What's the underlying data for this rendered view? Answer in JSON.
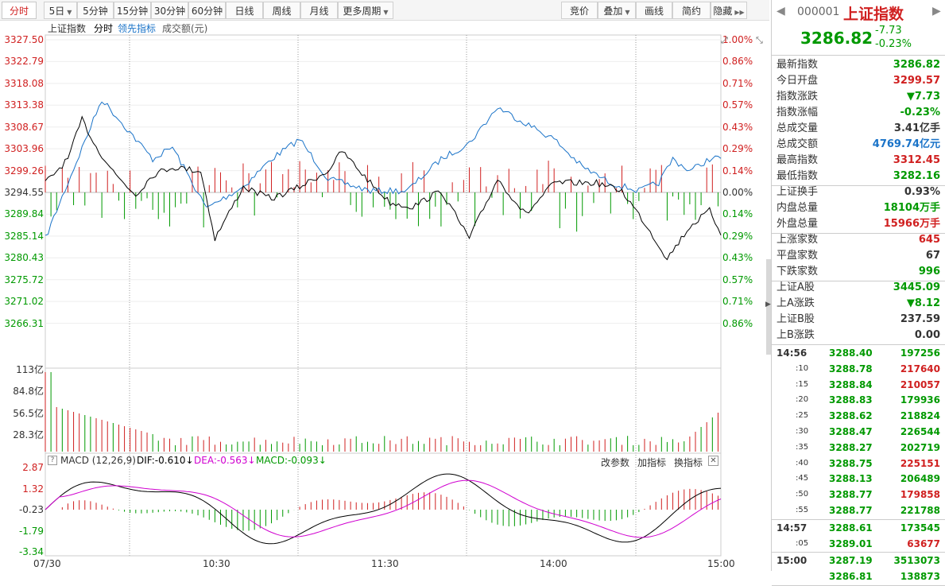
{
  "toolbar": {
    "periods": [
      {
        "label": "分时",
        "active": true
      },
      {
        "label": "5日",
        "dropdown": true
      },
      {
        "label": "5分钟"
      },
      {
        "label": "15分钟"
      },
      {
        "label": "30分钟"
      },
      {
        "label": "60分钟"
      },
      {
        "label": "日线"
      },
      {
        "label": "周线"
      },
      {
        "label": "月线"
      },
      {
        "label": "更多周期",
        "dropdown": true
      }
    ],
    "tools": [
      {
        "label": "竞价"
      },
      {
        "label": "叠加",
        "dropdown": true
      },
      {
        "label": "画线"
      },
      {
        "label": "简约"
      },
      {
        "label": "隐藏"
      }
    ]
  },
  "legend": {
    "index_name": "上证指数",
    "mode": "分时",
    "lead": "领先指标",
    "volume_label": "成交额(元)"
  },
  "price_axis": {
    "left": [
      "3327.50",
      "3322.79",
      "3318.08",
      "3313.38",
      "3308.67",
      "3303.96",
      "3299.26",
      "3294.55",
      "3289.84",
      "3285.14",
      "3280.43",
      "3275.72",
      "3271.02",
      "3266.31"
    ],
    "right": [
      "1.00%",
      "0.86%",
      "0.71%",
      "0.57%",
      "0.43%",
      "0.29%",
      "0.14%",
      "0.00%",
      "0.14%",
      "0.29%",
      "0.43%",
      "0.57%",
      "0.71%",
      "0.86%"
    ]
  },
  "volume_axis": [
    "113亿",
    "84.8亿",
    "56.5亿",
    "28.3亿"
  ],
  "macd": {
    "title": "MACD (12,26,9)",
    "dif": "DIF:-0.610",
    "dea": "DEA:-0.563",
    "macd": "MACD:-0.093",
    "axis": [
      "2.87",
      "1.32",
      "-0.23",
      "-1.79",
      "-3.34"
    ],
    "buttons": [
      "改参数",
      "加指标",
      "换指标"
    ]
  },
  "time_axis": [
    "07/30",
    "10:30",
    "11:30",
    "14:00",
    "15:00"
  ],
  "colors": {
    "up": "#d02020",
    "down": "#009900",
    "price_line": "#1a73c8",
    "avg_line": "#000000",
    "dea": "#d000d0"
  },
  "quote": {
    "code": "000001",
    "name": "上证指数",
    "price": "3286.82",
    "change": "-7.73",
    "change_pct": "-0.23%"
  },
  "stats1": [
    {
      "k": "最新指数",
      "v": "3286.82",
      "c": "down"
    },
    {
      "k": "今日开盘",
      "v": "3299.57",
      "c": "up"
    },
    {
      "k": "指数涨跌",
      "v": "▼7.73",
      "c": "down"
    },
    {
      "k": "指数涨幅",
      "v": "-0.23%",
      "c": "down"
    },
    {
      "k": "总成交量",
      "v": "3.41亿手",
      "c": "plain"
    },
    {
      "k": "总成交额",
      "v": "4769.74亿元",
      "c": "blue"
    },
    {
      "k": "最高指数",
      "v": "3312.45",
      "c": "up"
    },
    {
      "k": "最低指数",
      "v": "3282.16",
      "c": "down"
    }
  ],
  "stats2": [
    {
      "k": "上证换手",
      "v": "0.93%",
      "c": "plain"
    },
    {
      "k": "内盘总量",
      "v": "18104万手",
      "c": "down"
    },
    {
      "k": "外盘总量",
      "v": "15966万手",
      "c": "up"
    }
  ],
  "stats3": [
    {
      "k": "上涨家数",
      "v": "645",
      "c": "up"
    },
    {
      "k": "平盘家数",
      "v": "67",
      "c": "plain"
    },
    {
      "k": "下跌家数",
      "v": "996",
      "c": "down"
    }
  ],
  "stats4": [
    {
      "k": "上证A股",
      "v": "3445.09",
      "c": "down"
    },
    {
      "k": "上A涨跌",
      "v": "▼8.12",
      "c": "down"
    },
    {
      "k": "上证B股",
      "v": "237.59",
      "c": "plain"
    },
    {
      "k": "上B涨跌",
      "v": "0.00",
      "c": "plain"
    }
  ],
  "ticks1": [
    {
      "t": "14:56",
      "p": "3288.40",
      "q": "197256",
      "c": "down"
    },
    {
      "t": ":10",
      "p": "3288.78",
      "q": "217640",
      "c": "up"
    },
    {
      "t": ":15",
      "p": "3288.84",
      "q": "210057",
      "c": "up"
    },
    {
      "t": ":20",
      "p": "3288.83",
      "q": "179936",
      "c": "down"
    },
    {
      "t": ":25",
      "p": "3288.62",
      "q": "218824",
      "c": "down"
    },
    {
      "t": ":30",
      "p": "3288.47",
      "q": "226544",
      "c": "down"
    },
    {
      "t": ":35",
      "p": "3288.27",
      "q": "202719",
      "c": "down"
    },
    {
      "t": ":40",
      "p": "3288.75",
      "q": "225151",
      "c": "up"
    },
    {
      "t": ":45",
      "p": "3288.13",
      "q": "206489",
      "c": "down"
    },
    {
      "t": ":50",
      "p": "3288.77",
      "q": "179858",
      "c": "up"
    },
    {
      "t": ":55",
      "p": "3288.77",
      "q": "221788",
      "c": "down"
    }
  ],
  "ticks2": [
    {
      "t": "14:57",
      "p": "3288.61",
      "q": "173545",
      "c": "down"
    },
    {
      "t": ":05",
      "p": "3289.01",
      "q": "63677",
      "c": "up"
    }
  ],
  "ticks3": [
    {
      "t": "15:00",
      "p": "3287.19",
      "q": "3513073",
      "c": "down"
    },
    {
      "t": "",
      "p": "3286.81",
      "q": "138873",
      "c": "down"
    }
  ]
}
